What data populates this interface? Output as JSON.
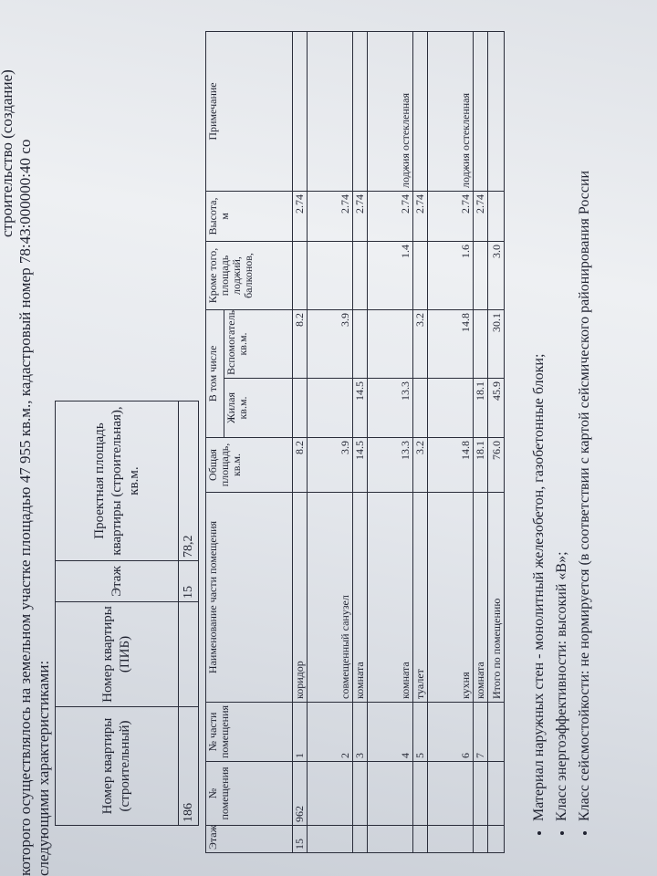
{
  "intro": {
    "line0": "строительство (создание)",
    "line1": "которого осуществлялось на земельном участке площадью 47 955 кв.м., кадастровый номер 78:43:000000:40 со",
    "line2": "следующими характеристиками:"
  },
  "table1": {
    "headers": [
      "Номер квартиры (строительный)",
      "Номер квартиры (ПИБ)",
      "Этаж",
      "Проектная площадь квартиры (строительная), кв.м."
    ],
    "row": [
      "186",
      null,
      "15",
      "78,2"
    ]
  },
  "table2": {
    "headers": {
      "floor": "Этаж",
      "room_no": "№ помещения",
      "part_no": "№ части помещения",
      "name": "Наименование части помещения",
      "total": "Общая площадь, кв.м.",
      "incl": "В том числе",
      "living": "Жилая кв.м.",
      "aux": "Вспомогательная, кв.м.",
      "extra": "Кроме того, площадь лоджий, балконов,",
      "height": "Высота, м",
      "note": "Примечание"
    },
    "rows": [
      [
        "15",
        "962",
        "1",
        "коридор",
        "8.2",
        null,
        "8.2",
        null,
        "2.74",
        null
      ],
      [
        null,
        null,
        "2",
        "совмещенный санузел",
        "3.9",
        null,
        "3.9",
        null,
        "2.74",
        null
      ],
      [
        null,
        null,
        "3",
        "комната",
        "14.5",
        "14.5",
        null,
        null,
        "2.74",
        null
      ],
      [
        null,
        null,
        "4",
        "комната",
        "13.3",
        "13.3",
        null,
        "1.4",
        "2.74",
        "лоджия остекленная"
      ],
      [
        null,
        null,
        "5",
        "туалет",
        "3.2",
        null,
        "3.2",
        null,
        "2.74",
        null
      ],
      [
        null,
        null,
        "6",
        "кухня",
        "14.8",
        null,
        "14.8",
        "1.6",
        "2.74",
        "лоджия остекленная"
      ],
      [
        null,
        null,
        "7",
        "комната",
        "18.1",
        "18.1",
        null,
        null,
        "2.74",
        null
      ],
      [
        null,
        null,
        null,
        "Итого по помещению",
        "76.0",
        "45.9",
        "30.1",
        "3.0",
        null,
        null
      ]
    ]
  },
  "bullets": [
    "Материал наружных стен - монолитный железобетон, газобетонные блоки;",
    "Класс энергоэффективности: высокий «В»;",
    "Класс сейсмостойкости: не нормируется (в соответствии с картой сейсмического районирования России"
  ]
}
